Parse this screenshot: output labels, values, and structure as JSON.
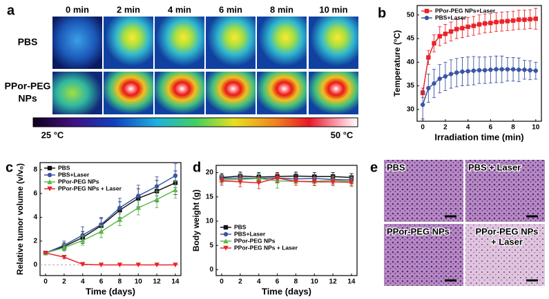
{
  "panel_a": {
    "label": "a",
    "times": [
      "0 min",
      "2 min",
      "4 min",
      "6 min",
      "8 min",
      "10 min"
    ],
    "rows": [
      [
        "PBS"
      ],
      [
        "PPor-PEG",
        "NPs"
      ]
    ],
    "colorbar": [
      "25 °C",
      "50 °C"
    ]
  },
  "chart_data": [
    {
      "type": "line",
      "label": "b",
      "xlabel": "Irradiation time (min)",
      "ylabel": "Temperature (°C)",
      "x": [
        0,
        0.5,
        1,
        1.5,
        2,
        2.5,
        3,
        3.5,
        4,
        4.5,
        5,
        5.5,
        6,
        6.5,
        7,
        7.5,
        8,
        8.5,
        9,
        9.5,
        10
      ],
      "xlim": [
        -0.5,
        10.5
      ],
      "xticks": [
        0,
        2,
        4,
        6,
        8,
        10
      ],
      "ylim": [
        27.5,
        52
      ],
      "yticks": [
        30,
        35,
        40,
        45,
        50
      ],
      "legend": "upper left",
      "series": [
        {
          "name": "PPor-PEG NPs+Laser",
          "color": "#e8232a",
          "marker": "square",
          "values": [
            33.5,
            41,
            44,
            45.5,
            46,
            46.5,
            47,
            47.2,
            47.5,
            47.7,
            48,
            48.2,
            48.3,
            48.5,
            48.6,
            48.7,
            48.8,
            49,
            49,
            49.1,
            49.2
          ],
          "errors": [
            1,
            1.5,
            1.8,
            2,
            2,
            2,
            2,
            2,
            2,
            2,
            2,
            2,
            2,
            2,
            2,
            2,
            2,
            2,
            2,
            2,
            2.2
          ]
        },
        {
          "name": "PBS+Laser",
          "color": "#3a55a4",
          "marker": "circle",
          "values": [
            31,
            34.5,
            35.5,
            36.5,
            37,
            37.5,
            37.8,
            38,
            38.1,
            38.2,
            38.3,
            38.3,
            38.4,
            38.5,
            38.5,
            38.5,
            38.5,
            38.4,
            38.4,
            38.3,
            38.2
          ],
          "errors": [
            3,
            3,
            3,
            3,
            3,
            3,
            3,
            3,
            3,
            3,
            2.8,
            2.8,
            2.8,
            2.8,
            2.8,
            2.5,
            2.5,
            2.5,
            2,
            2,
            1.8
          ]
        }
      ]
    },
    {
      "type": "line",
      "label": "c",
      "xlabel": "Time (days)",
      "ylabel": "Relative tumor volume (v/v₀)",
      "x": [
        0,
        2,
        4,
        6,
        8,
        10,
        12,
        14
      ],
      "xlim": [
        -0.6,
        14.6
      ],
      "xticks": [
        0,
        2,
        4,
        6,
        8,
        10,
        12,
        14
      ],
      "ylim": [
        -0.9,
        8.6
      ],
      "yticks": [
        0,
        2,
        4,
        6,
        8
      ],
      "hline": 0,
      "legend": "upper left",
      "series": [
        {
          "name": "PBS",
          "color": "#111111",
          "marker": "square",
          "values": [
            1,
            1.55,
            2.3,
            3.3,
            4.6,
            5.6,
            6.2,
            6.9
          ],
          "errors": [
            0.05,
            0.3,
            0.5,
            0.6,
            0.7,
            0.8,
            0.9,
            1.0
          ]
        },
        {
          "name": "PBS+Laser",
          "color": "#3a55a4",
          "marker": "circle",
          "values": [
            1,
            1.65,
            2.5,
            3.4,
            4.8,
            5.8,
            6.6,
            7.5
          ],
          "errors": [
            0.05,
            0.35,
            0.7,
            0.6,
            0.8,
            0.9,
            0.8,
            1.0
          ]
        },
        {
          "name": "PPor-PEG NPs",
          "color": "#5cb848",
          "marker": "triangle-up",
          "values": [
            1,
            1.45,
            2.05,
            2.8,
            3.8,
            4.8,
            5.5,
            6.3
          ],
          "errors": [
            0.05,
            0.3,
            0.4,
            0.5,
            0.5,
            0.6,
            0.7,
            0.7
          ]
        },
        {
          "name": "PPor-PEG NPs + Laser",
          "color": "#e8232a",
          "marker": "triangle-down",
          "values": [
            1,
            0.65,
            0.05,
            0,
            0,
            0,
            0,
            0
          ],
          "errors": [
            0.05,
            0.12,
            0.08,
            0,
            0,
            0,
            0,
            0
          ]
        }
      ]
    },
    {
      "type": "line",
      "label": "d",
      "xlabel": "Time (days)",
      "ylabel": "Body weight (g)",
      "x": [
        0,
        2,
        4,
        6,
        8,
        10,
        12,
        14
      ],
      "xlim": [
        -0.6,
        14.6
      ],
      "xticks": [
        0,
        2,
        4,
        6,
        8,
        10,
        12,
        14
      ],
      "ylim": [
        -1.2,
        21.5
      ],
      "yticks": [
        0,
        5,
        10,
        15,
        20
      ],
      "legend": "lower left",
      "series": [
        {
          "name": "PBS",
          "color": "#111111",
          "marker": "square",
          "values": [
            19,
            19.3,
            19.1,
            19.2,
            19.3,
            19.2,
            19.2,
            19.0
          ],
          "errors": [
            0.8,
            0.8,
            0.9,
            0.8,
            0.8,
            0.8,
            0.8,
            0.8
          ]
        },
        {
          "name": "PBS+Laser",
          "color": "#3a55a4",
          "marker": "circle",
          "values": [
            18.8,
            18.9,
            18.8,
            18.9,
            18.7,
            18.8,
            18.6,
            18.5
          ],
          "errors": [
            0.8,
            0.8,
            0.9,
            0.9,
            0.8,
            0.8,
            0.8,
            0.8
          ]
        },
        {
          "name": "PPor-PEG NPs",
          "color": "#5cb848",
          "marker": "triangle-up",
          "values": [
            18.5,
            18.6,
            18.8,
            18.3,
            18.2,
            18.2,
            18.4,
            18.2
          ],
          "errors": [
            0.8,
            0.9,
            1.0,
            1.5,
            0.8,
            0.8,
            0.8,
            0.8
          ]
        },
        {
          "name": "PPor-PEG NPs + Laser",
          "color": "#e8232a",
          "marker": "triangle-down",
          "values": [
            18.3,
            18.1,
            17.9,
            18.9,
            18.2,
            18.1,
            18.1,
            18.0
          ],
          "errors": [
            0.9,
            1.0,
            1.2,
            1.0,
            0.8,
            0.8,
            0.8,
            0.8
          ]
        }
      ]
    }
  ],
  "panel_e": {
    "label": "e",
    "images": [
      [
        "PBS"
      ],
      [
        "PBS + Laser"
      ],
      [
        "PPor-PEG NPs"
      ],
      [
        "PPor-PEG NPs",
        "+ Laser"
      ]
    ]
  }
}
